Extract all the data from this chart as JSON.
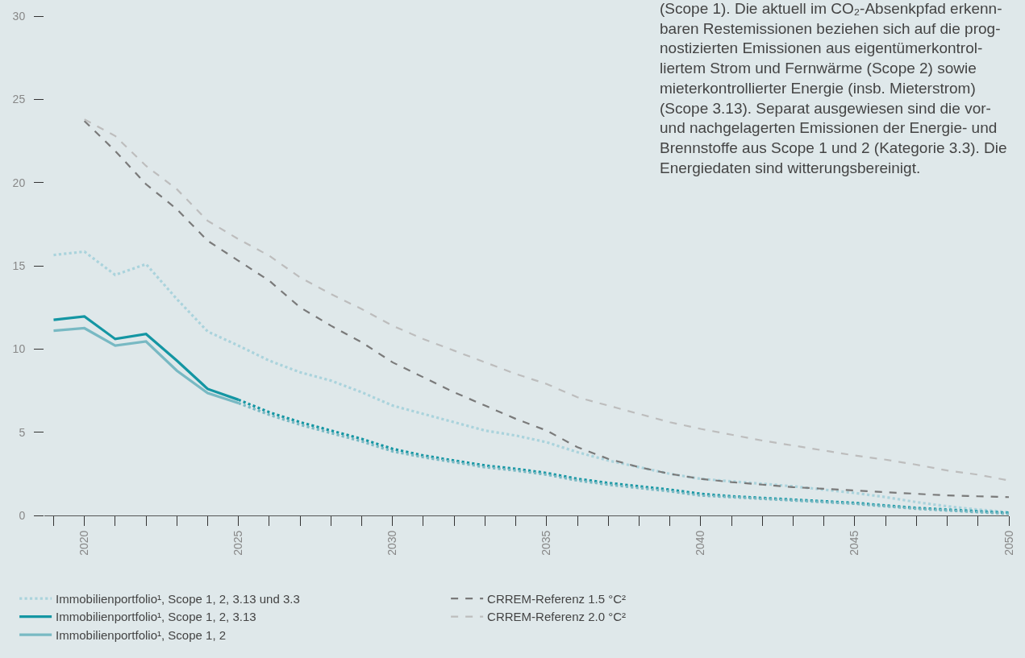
{
  "chart_data": {
    "type": "line",
    "annotations": [
      "(Scope 1). Die aktuell im CO₂-Absenkpfad erkenn-\nbaren Restemissionen beziehen sich auf die prog-\nnostizierten Emissionen aus eigentümerkontrol-\nliertem Strom und Fernwärme (Scope 2) sowie\nmieterkontrollierter Energie (insb. Mieterstrom)\n(Scope 3.13). Separat ausgewiesen sind die vor-\nund nachgelagerten Emissionen der Energie- und\nBrennstoffe aus Scope 1 und 2 (Kategorie 3.3). Die\nEnergiedaten sind witterungsbereinigt."
    ],
    "series": [
      {
        "name": "Immobilienportfolio¹, Scope 1, 2, 3.13 und 3.3",
        "color": "#aad3dc",
        "line_style": "dotted",
        "x": [
          2019,
          2020,
          2021,
          2022,
          2023,
          2024,
          2025,
          2026,
          2027,
          2028,
          2029,
          2030,
          2031,
          2032,
          2033,
          2034,
          2035,
          2036,
          2037,
          2038,
          2039,
          2040,
          2041,
          2042,
          2043,
          2044,
          2045,
          2046,
          2047,
          2048,
          2049,
          2050
        ],
        "values": [
          15.65,
          15.85,
          14.45,
          15.1,
          13.0,
          11.05,
          10.2,
          9.3,
          8.6,
          8.1,
          7.4,
          6.6,
          6.1,
          5.6,
          5.1,
          4.8,
          4.4,
          3.8,
          3.3,
          2.9,
          2.5,
          2.2,
          2.05,
          1.9,
          1.75,
          1.55,
          1.35,
          1.1,
          0.8,
          0.55,
          0.35,
          0.2
        ]
      },
      {
        "name": "CRREM-Referenz 1.5 °C²",
        "color": "#7a7a7a",
        "line_style": "dashed",
        "x": [
          2020,
          2021,
          2022,
          2023,
          2024,
          2025,
          2026,
          2027,
          2028,
          2029,
          2030,
          2031,
          2032,
          2033,
          2034,
          2035,
          2036,
          2037,
          2038,
          2039,
          2040,
          2041,
          2042,
          2043,
          2044,
          2045,
          2046,
          2047,
          2048,
          2049,
          2050
        ],
        "values": [
          23.7,
          21.9,
          19.9,
          18.4,
          16.5,
          15.3,
          14.1,
          12.5,
          11.4,
          10.4,
          9.2,
          8.3,
          7.4,
          6.6,
          5.8,
          5.1,
          4.1,
          3.4,
          2.9,
          2.5,
          2.2,
          2.0,
          1.85,
          1.7,
          1.6,
          1.5,
          1.4,
          1.3,
          1.2,
          1.15,
          1.1
        ]
      },
      {
        "name": "Immobilienportfolio¹, Scope 1, 2, 3.13",
        "color": "#1496a3",
        "line_style": "solid",
        "x": [
          2019,
          2020,
          2021,
          2022,
          2023,
          2024,
          2025
        ],
        "values": [
          11.75,
          11.95,
          10.6,
          10.9,
          9.3,
          7.6,
          6.95
        ]
      },
      {
        "name": "CRREM-Referenz 2.0 °C²",
        "color": "#bdbdbd",
        "line_style": "dashed",
        "x": [
          2020,
          2021,
          2022,
          2023,
          2024,
          2025,
          2026,
          2027,
          2028,
          2029,
          2030,
          2031,
          2032,
          2033,
          2034,
          2035,
          2036,
          2037,
          2038,
          2039,
          2040,
          2041,
          2042,
          2043,
          2044,
          2045,
          2046,
          2047,
          2048,
          2049,
          2050
        ],
        "values": [
          23.8,
          22.8,
          21.0,
          19.6,
          17.7,
          16.6,
          15.6,
          14.3,
          13.3,
          12.4,
          11.4,
          10.6,
          9.9,
          9.2,
          8.5,
          7.9,
          7.1,
          6.6,
          6.1,
          5.6,
          5.2,
          4.85,
          4.5,
          4.2,
          3.9,
          3.6,
          3.35,
          3.05,
          2.7,
          2.45,
          2.1
        ]
      },
      {
        "name": "Immobilienportfolio¹, Scope 1, 2",
        "color": "#78b9c3",
        "line_style": "solid",
        "x": [
          2019,
          2020,
          2021,
          2022,
          2023,
          2024,
          2025
        ],
        "values": [
          11.1,
          11.25,
          10.2,
          10.45,
          8.7,
          7.35,
          6.75
        ]
      },
      {
        "color": "#1496a3",
        "line_style": "dotted",
        "x": [
          2025,
          2026,
          2027,
          2028,
          2029,
          2030,
          2031,
          2032,
          2033,
          2034,
          2035,
          2036,
          2037,
          2038,
          2039,
          2040,
          2041,
          2042,
          2043,
          2044,
          2045,
          2046,
          2047,
          2048,
          2049,
          2050
        ],
        "values": [
          6.95,
          6.2,
          5.6,
          5.1,
          4.6,
          4.0,
          3.6,
          3.3,
          3.0,
          2.8,
          2.55,
          2.2,
          1.95,
          1.75,
          1.55,
          1.3,
          1.15,
          1.05,
          0.95,
          0.85,
          0.75,
          0.6,
          0.45,
          0.35,
          0.25,
          0.15
        ]
      },
      {
        "color": "#78b9c3",
        "line_style": "dotted",
        "x": [
          2025,
          2026,
          2027,
          2028,
          2029,
          2030,
          2031,
          2032,
          2033,
          2034,
          2035,
          2036,
          2037,
          2038,
          2039,
          2040,
          2041,
          2042,
          2043,
          2044,
          2045,
          2046,
          2047,
          2048,
          2049,
          2050
        ],
        "values": [
          6.75,
          6.05,
          5.45,
          4.95,
          4.45,
          3.85,
          3.5,
          3.2,
          2.9,
          2.7,
          2.45,
          2.1,
          1.85,
          1.65,
          1.45,
          1.2,
          1.1,
          1.0,
          0.9,
          0.8,
          0.7,
          0.55,
          0.4,
          0.3,
          0.2,
          0.1
        ]
      }
    ],
    "xlim": [
      2018.7,
      2050
    ],
    "xticks": [
      {
        "value": 2019,
        "label": null
      },
      2020,
      {
        "value": 2021,
        "label": null
      },
      {
        "value": 2022,
        "label": null
      },
      {
        "value": 2023,
        "label": null
      },
      {
        "value": 2024,
        "label": null
      },
      2025,
      {
        "value": 2026,
        "label": null
      },
      {
        "value": 2027,
        "label": null
      },
      {
        "value": 2028,
        "label": null
      },
      {
        "value": 2029,
        "label": null
      },
      2030,
      {
        "value": 2031,
        "label": null
      },
      {
        "value": 2032,
        "label": null
      },
      {
        "value": 2033,
        "label": null
      },
      {
        "value": 2034,
        "label": null
      },
      2035,
      {
        "value": 2036,
        "label": null
      },
      {
        "value": 2037,
        "label": null
      },
      {
        "value": 2038,
        "label": null
      },
      {
        "value": 2039,
        "label": null
      },
      2040,
      {
        "value": 2041,
        "label": null
      },
      {
        "value": 2042,
        "label": null
      },
      {
        "value": 2043,
        "label": null
      },
      {
        "value": 2044,
        "label": null
      },
      2045,
      {
        "value": 2046,
        "label": null
      },
      {
        "value": 2047,
        "label": null
      },
      {
        "value": 2048,
        "label": null
      },
      {
        "value": 2049,
        "label": null
      },
      2050
    ],
    "ylim": [
      0,
      30
    ],
    "yticks": [
      0,
      5,
      10,
      15,
      20,
      25,
      30
    ],
    "grid": false,
    "legend": "bottom",
    "marker": "none"
  }
}
